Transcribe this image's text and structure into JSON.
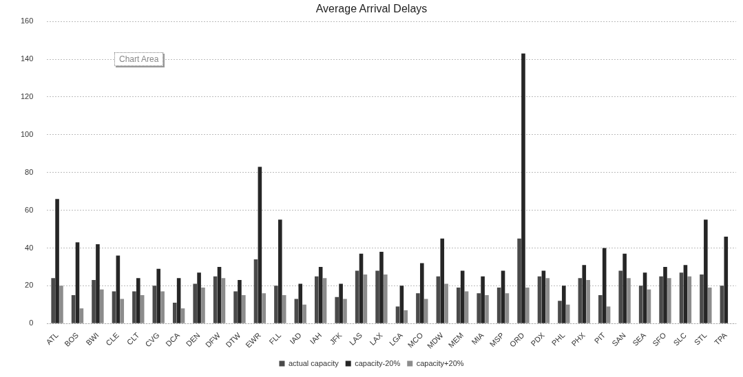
{
  "chart_data": {
    "type": "bar",
    "title": "Average Arrival Delays",
    "categories": [
      "ATL",
      "BOS",
      "BWI",
      "CLE",
      "CLT",
      "CVG",
      "DCA",
      "DEN",
      "DFW",
      "DTW",
      "EWR",
      "FLL",
      "IAD",
      "IAH",
      "JFK",
      "LAS",
      "LAX",
      "LGA",
      "MCO",
      "MDW",
      "MEM",
      "MIA",
      "MSP",
      "ORD",
      "PDX",
      "PHL",
      "PHX",
      "PIT",
      "SAN",
      "SEA",
      "SFO",
      "SLC",
      "STL",
      "TPA"
    ],
    "series": [
      {
        "name": "actual capacity",
        "color": "#4a4a4a",
        "values": [
          24,
          15,
          23,
          17,
          17,
          20,
          11,
          21,
          25,
          17,
          34,
          20,
          13,
          25,
          14,
          28,
          28,
          9,
          16,
          25,
          19,
          16,
          19,
          45,
          25,
          12,
          24,
          15,
          28,
          20,
          25,
          27,
          26,
          20
        ]
      },
      {
        "name": "capacity-20%",
        "color": "#262626",
        "values": [
          66,
          43,
          42,
          36,
          24,
          29,
          24,
          27,
          30,
          23,
          83,
          55,
          21,
          30,
          21,
          37,
          38,
          20,
          32,
          45,
          28,
          25,
          28,
          143,
          28,
          20,
          31,
          40,
          37,
          27,
          30,
          31,
          55,
          46
        ]
      },
      {
        "name": "capacity+20%",
        "color": "#8c8c8c",
        "values": [
          20,
          8,
          18,
          13,
          15,
          17,
          8,
          19,
          24,
          15,
          16,
          15,
          10,
          24,
          13,
          26,
          26,
          7,
          13,
          21,
          17,
          15,
          16,
          19,
          24,
          10,
          23,
          9,
          24,
          18,
          24,
          25,
          19,
          null
        ]
      }
    ],
    "ylim": [
      0,
      160
    ],
    "yticks": [
      0,
      20,
      40,
      60,
      80,
      100,
      120,
      140,
      160
    ],
    "grid": "y",
    "legend": "bottom",
    "annotations": [
      "Chart Area"
    ]
  }
}
